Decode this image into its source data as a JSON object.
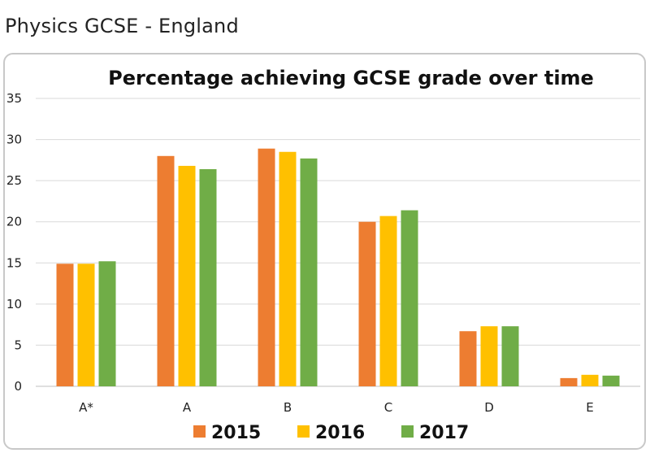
{
  "page": {
    "heading": "Physics GCSE - England"
  },
  "chart_data": {
    "type": "bar",
    "title": "Percentage achieving GCSE grade over time",
    "xlabel": "",
    "ylabel": "",
    "categories": [
      "A*",
      "A",
      "B",
      "C",
      "D",
      "E"
    ],
    "ylim": [
      0,
      35
    ],
    "yticks": [
      0,
      5,
      10,
      15,
      20,
      25,
      30,
      35
    ],
    "grid": true,
    "legend_position": "bottom",
    "series": [
      {
        "name": "2015",
        "color": "#ED7D31",
        "values": [
          14.9,
          28.0,
          28.9,
          20.0,
          6.7,
          1.0
        ]
      },
      {
        "name": "2016",
        "color": "#FFC000",
        "values": [
          14.9,
          26.8,
          28.5,
          20.7,
          7.3,
          1.4
        ]
      },
      {
        "name": "2017",
        "color": "#70AD47",
        "values": [
          15.2,
          26.4,
          27.7,
          21.4,
          7.3,
          1.3
        ]
      }
    ]
  }
}
